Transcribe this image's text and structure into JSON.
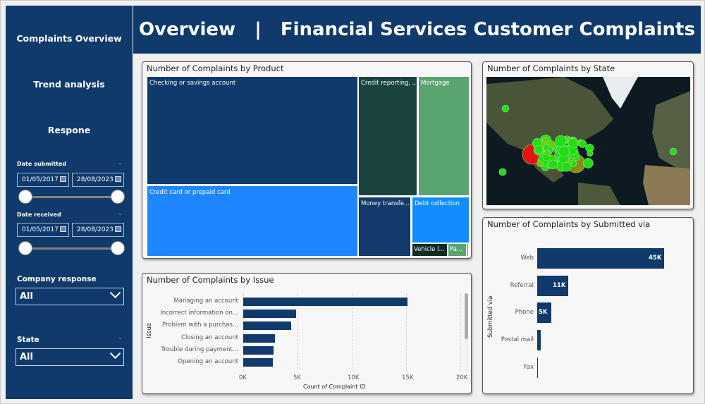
{
  "sidebar": {
    "nav": [
      "Complaints Overview",
      "Trend analysis",
      "Respone"
    ],
    "date_submitted": {
      "label": "Date submitted",
      "start": "01/05/2017",
      "end": "28/08/2023",
      "range_fraction": [
        0,
        1
      ]
    },
    "date_received": {
      "label": "Date received",
      "start": "01/05/2017",
      "end": "28/08/2023",
      "range_fraction": [
        0,
        1
      ]
    },
    "company_response": {
      "label": "Company response",
      "value": "All"
    },
    "state": {
      "label": "State",
      "value": "All"
    }
  },
  "header": {
    "title": "Overview   |   Financial Services Customer Complaints"
  },
  "product": {
    "title": "Number of Complaints by Product",
    "cells": [
      "Checking or savings account",
      "Credit card or prepaid card",
      "Credit reporting, ...",
      "Mortgage",
      "Money transfe...",
      "Debt collection",
      "Vehicle l...",
      "Pa..."
    ]
  },
  "state_map": {
    "title": "Number of Complaints by State"
  },
  "chart_data": [
    {
      "type": "bar",
      "title": "Number of Complaints by Issue",
      "xlabel": "Count of Complaint ID",
      "ylabel": "Issue",
      "categories": [
        "Managing an account",
        "Incorrect information on...",
        "Problem with a purchas...",
        "Closing an account",
        "Trouble during payment...",
        "Opening an account"
      ],
      "values": [
        15100,
        4900,
        4400,
        2900,
        2800,
        2700
      ],
      "xlim": [
        0,
        20000
      ],
      "xticks": [
        "0K",
        "5K",
        "10K",
        "15K",
        "20K"
      ]
    },
    {
      "type": "bar",
      "title": "Number of Complaints by Submitted via",
      "xlabel": "",
      "ylabel": "Submitted via",
      "categories": [
        "Web",
        "Referral",
        "Phone",
        "Postal mail",
        "Fax"
      ],
      "values": [
        45000,
        11000,
        5000,
        1200,
        200
      ],
      "data_labels": [
        "45K",
        "11K",
        "5K",
        "",
        ""
      ]
    }
  ],
  "colors": {
    "navy": "#0f3a6b",
    "product": [
      "#0f3a6b",
      "#1e86ff",
      "#1b4440",
      "#5aa470",
      "#123a6a",
      "#118dff",
      "#0e2b26",
      "#5aa470"
    ]
  }
}
